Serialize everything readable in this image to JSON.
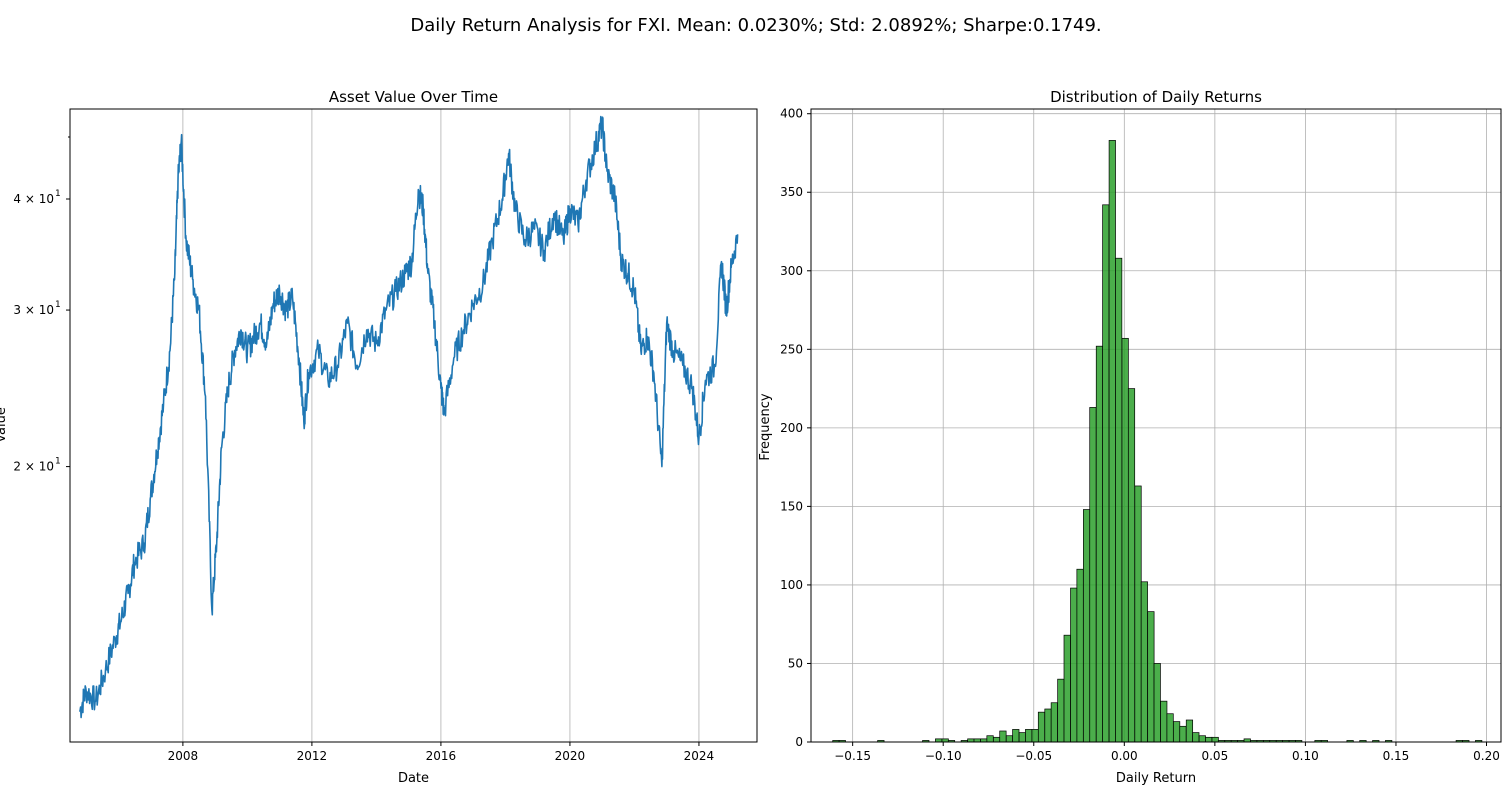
{
  "suptitle": "Daily Return Analysis for FXI. Mean: 0.0230%; Std: 2.0892%; Sharpe:0.1749.",
  "chart_data": [
    {
      "type": "line",
      "title": "Asset Value Over Time",
      "xlabel": "Date",
      "ylabel": "Value",
      "yscale": "log",
      "grid": "x",
      "color": "#1f77b4",
      "xlim": [
        2004.5,
        2025.8
      ],
      "ylim": [
        9.8,
        50.5
      ],
      "x_ticks": [
        2008,
        2012,
        2016,
        2020,
        2024
      ],
      "x_tick_labels": [
        "2008",
        "2012",
        "2016",
        "2020",
        "2024"
      ],
      "y_ticks": [
        20,
        30,
        40
      ],
      "y_tick_labels": [
        "2 × 10",
        "3 × 10",
        "4 × 10"
      ],
      "y_tick_exponent": "1",
      "x": [
        2004.8,
        2005.0,
        2005.3,
        2005.6,
        2005.9,
        2006.1,
        2006.3,
        2006.5,
        2006.8,
        2007.0,
        2007.2,
        2007.4,
        2007.6,
        2007.75,
        2007.85,
        2007.95,
        2008.1,
        2008.3,
        2008.5,
        2008.7,
        2008.9,
        2009.05,
        2009.2,
        2009.4,
        2009.6,
        2009.8,
        2010.0,
        2010.2,
        2010.4,
        2010.6,
        2010.8,
        2011.0,
        2011.2,
        2011.4,
        2011.6,
        2011.75,
        2011.9,
        2012.2,
        2012.5,
        2012.8,
        2013.1,
        2013.4,
        2013.7,
        2014.0,
        2014.3,
        2014.6,
        2014.9,
        2015.1,
        2015.3,
        2015.45,
        2015.6,
        2015.8,
        2016.0,
        2016.1,
        2016.4,
        2016.7,
        2017.0,
        2017.3,
        2017.6,
        2017.9,
        2018.1,
        2018.3,
        2018.6,
        2018.9,
        2019.2,
        2019.5,
        2019.8,
        2020.0,
        2020.25,
        2020.5,
        2020.8,
        2021.0,
        2021.15,
        2021.4,
        2021.6,
        2021.8,
        2022.0,
        2022.2,
        2022.4,
        2022.6,
        2022.85,
        2023.0,
        2023.2,
        2023.5,
        2023.8,
        2024.0,
        2024.2,
        2024.5,
        2024.7,
        2024.85,
        2025.0,
        2025.2
      ],
      "y": [
        10.6,
        11.2,
        10.9,
        11.8,
        12.8,
        13.5,
        14.4,
        15.6,
        16.4,
        18.5,
        20.8,
        23.5,
        27.0,
        33.0,
        42.0,
        46.5,
        36.0,
        32.5,
        30.0,
        24.0,
        13.8,
        16.5,
        21.0,
        24.5,
        27.0,
        28.5,
        27.0,
        28.0,
        29.0,
        27.5,
        30.5,
        31.5,
        30.0,
        31.0,
        26.5,
        22.5,
        25.5,
        27.0,
        25.0,
        26.0,
        29.0,
        26.0,
        28.5,
        27.5,
        30.0,
        31.5,
        33.0,
        34.0,
        41.0,
        39.0,
        33.0,
        29.0,
        24.5,
        23.0,
        26.5,
        28.5,
        30.5,
        32.0,
        36.0,
        40.0,
        45.0,
        39.0,
        36.0,
        37.0,
        35.0,
        38.5,
        36.0,
        39.0,
        37.5,
        42.0,
        46.0,
        48.5,
        43.0,
        40.0,
        34.0,
        33.0,
        31.5,
        27.0,
        28.0,
        25.5,
        20.0,
        29.0,
        27.0,
        26.0,
        24.5,
        21.5,
        25.0,
        26.0,
        34.0,
        30.0,
        33.5,
        36.5
      ]
    },
    {
      "type": "bar",
      "title": "Distribution of Daily Returns",
      "xlabel": "Daily Return",
      "ylabel": "Frequency",
      "grid": "both",
      "color": "#2ca02c",
      "edgecolor": "#000000",
      "xlim": [
        -0.173,
        0.208
      ],
      "ylim": [
        0,
        403
      ],
      "bin_width": 0.00355,
      "x_ticks": [
        -0.15,
        -0.1,
        -0.05,
        0.0,
        0.05,
        0.1,
        0.15,
        0.2
      ],
      "x_tick_labels": [
        "−0.15",
        "−0.10",
        "−0.05",
        "0.00",
        "0.05",
        "0.10",
        "0.15",
        "0.20"
      ],
      "y_ticks": [
        0,
        50,
        100,
        150,
        200,
        250,
        300,
        350,
        400
      ],
      "y_tick_labels": [
        "0",
        "50",
        "100",
        "150",
        "200",
        "250",
        "300",
        "350",
        "400"
      ],
      "bin_left": [
        -0.161,
        -0.1575,
        -0.1362,
        -0.1114,
        -0.1043,
        -0.1007,
        -0.0972,
        -0.0901,
        -0.0865,
        -0.083,
        -0.0794,
        -0.0759,
        -0.0723,
        -0.0688,
        -0.0652,
        -0.0617,
        -0.0581,
        -0.0546,
        -0.051,
        -0.0475,
        -0.0439,
        -0.0404,
        -0.0368,
        -0.0333,
        -0.0297,
        -0.0262,
        -0.0226,
        -0.0191,
        -0.0155,
        -0.012,
        -0.0084,
        -0.0049,
        -0.0013,
        0.0022,
        0.0058,
        0.0093,
        0.0129,
        0.0164,
        0.02,
        0.0235,
        0.0271,
        0.0306,
        0.0342,
        0.0377,
        0.0413,
        0.0448,
        0.0484,
        0.0519,
        0.0555,
        0.059,
        0.0626,
        0.0661,
        0.0697,
        0.0732,
        0.0768,
        0.0803,
        0.0839,
        0.0874,
        0.091,
        0.0945,
        0.1052,
        0.1087,
        0.1229,
        0.13,
        0.1371,
        0.1442,
        0.1832,
        0.1868,
        0.1939
      ],
      "counts": [
        1,
        1,
        1,
        1,
        2,
        2,
        1,
        1,
        2,
        2,
        2,
        4,
        3,
        7,
        4,
        8,
        6,
        8,
        8,
        19,
        21,
        25,
        40,
        68,
        98,
        110,
        148,
        213,
        252,
        342,
        383,
        308,
        257,
        225,
        163,
        102,
        83,
        50,
        26,
        18,
        13,
        10,
        14,
        6,
        4,
        3,
        3,
        1,
        1,
        1,
        1,
        2,
        1,
        1,
        1,
        1,
        1,
        1,
        1,
        1,
        1,
        1,
        1,
        1,
        1,
        1,
        1,
        1,
        1
      ]
    }
  ]
}
